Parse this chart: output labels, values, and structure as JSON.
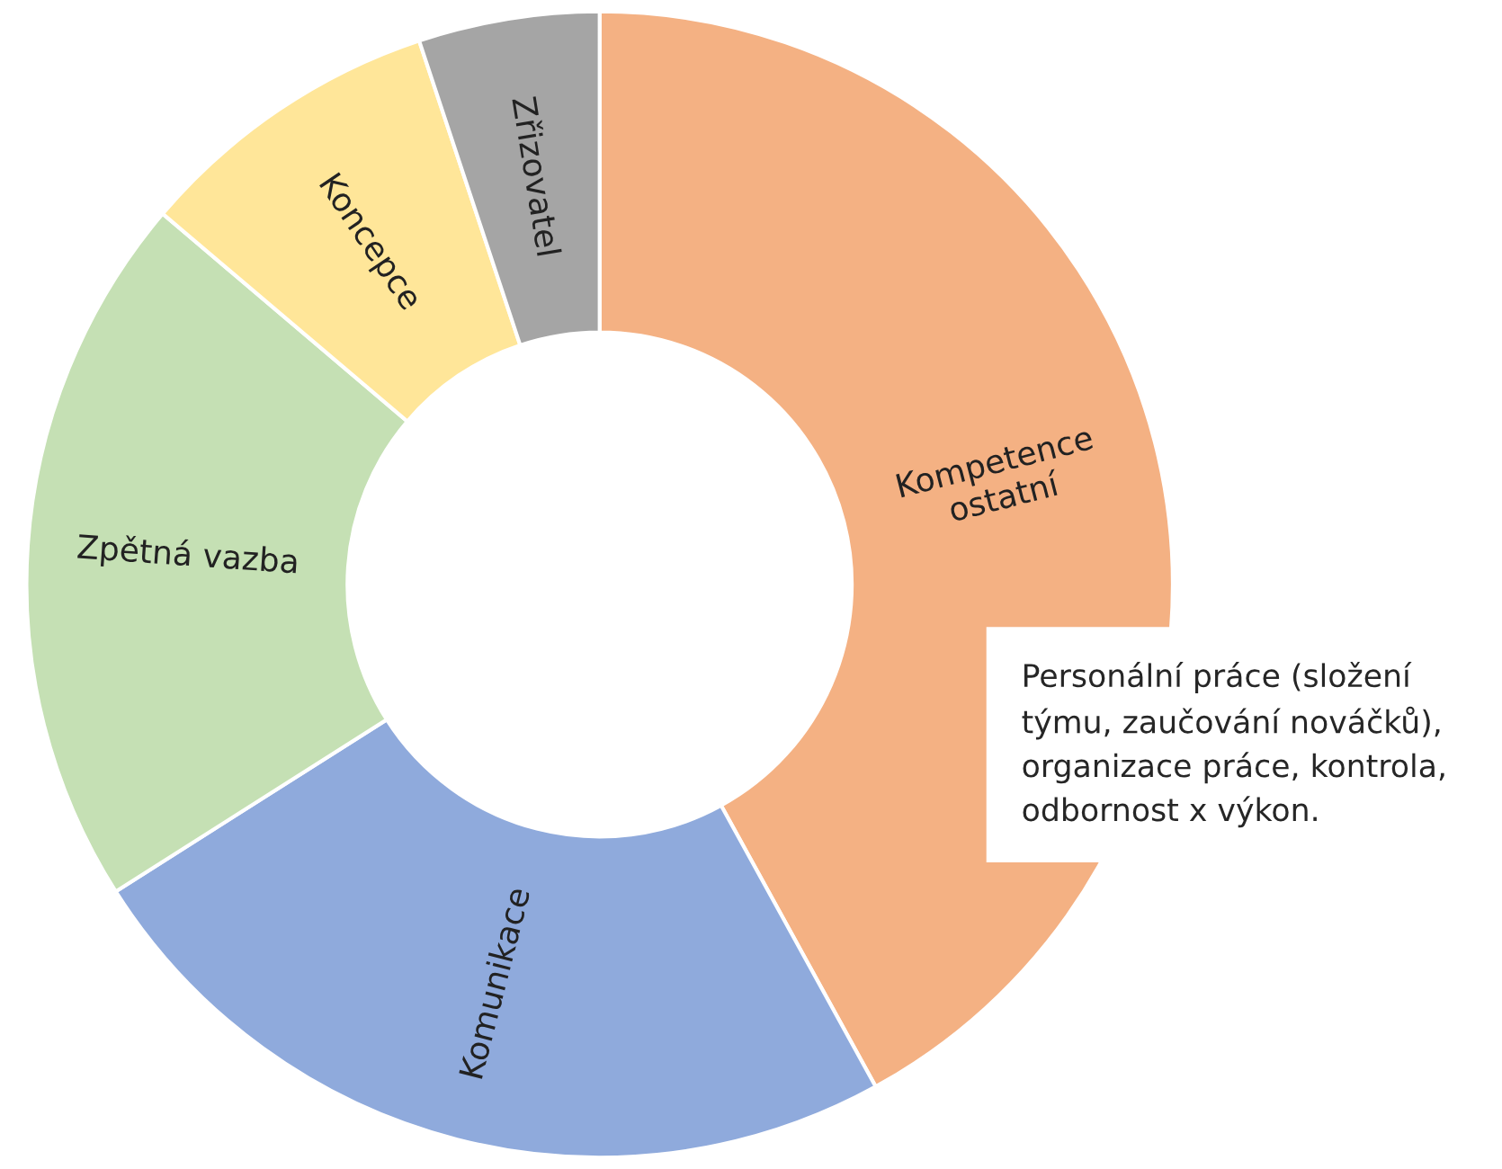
{
  "chart_data": {
    "type": "donut",
    "categories": [
      "Kompetence\nostatní",
      "Komunikace",
      "Zpětná vazba",
      "Koncepce",
      "Zřizovatel"
    ],
    "values": [
      42,
      24,
      20.2,
      8.7,
      5.1
    ],
    "colors": [
      "#f4b183",
      "#8faadc",
      "#c5e0b4",
      "#ffe699",
      "#a5a5a5"
    ],
    "annotations": [
      "Personální práce (složení\ntýmu, zaučování nováčků),\norganizace práce, kontrola,\nodbornost x výkon."
    ],
    "legend": false
  }
}
